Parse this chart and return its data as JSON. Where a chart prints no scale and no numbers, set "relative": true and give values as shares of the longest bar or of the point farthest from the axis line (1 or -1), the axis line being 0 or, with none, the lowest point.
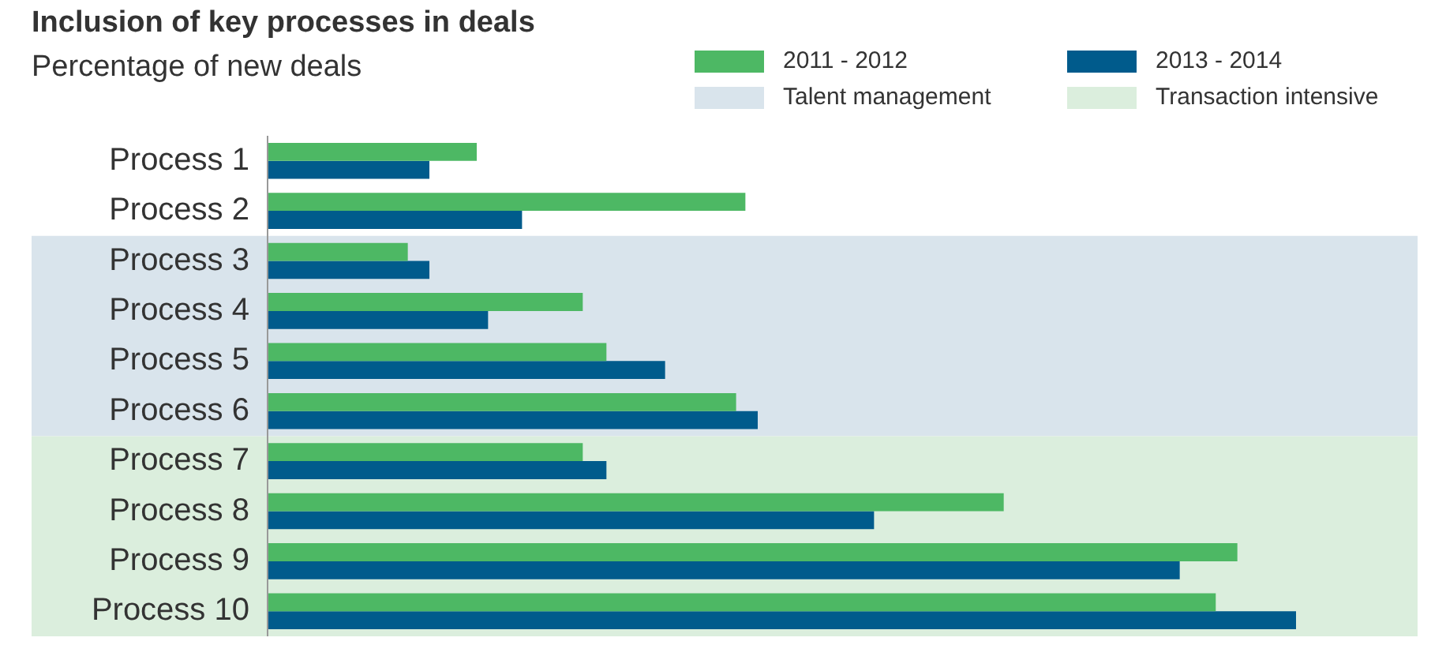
{
  "chart_data": {
    "type": "bar",
    "orientation": "horizontal",
    "relative": true,
    "title": "Inclusion of key processes in deals",
    "subtitle": "Percentage of new deals",
    "categories": [
      "Process 1",
      "Process 2",
      "Process 3",
      "Process 4",
      "Process 5",
      "Process 6",
      "Process 7",
      "Process 8",
      "Process 9",
      "Process 10"
    ],
    "series": [
      {
        "name": "2011 - 2012",
        "color": "#4db864",
        "values": [
          0.204,
          0.465,
          0.137,
          0.307,
          0.33,
          0.456,
          0.307,
          0.716,
          0.943,
          0.922
        ]
      },
      {
        "name": "2013 - 2014",
        "color": "#005b8c",
        "values": [
          0.158,
          0.248,
          0.158,
          0.215,
          0.387,
          0.477,
          0.33,
          0.59,
          0.887,
          1
        ]
      }
    ],
    "bands": [
      {
        "axis": "y",
        "from": "Process 3",
        "to": "Process 6",
        "label": "Talent management",
        "color": "#d9e4ec"
      },
      {
        "axis": "y",
        "from": "Process 7",
        "to": "Process 10",
        "label": "Transaction intensive",
        "color": "#dbeedd"
      }
    ],
    "legend": "top right"
  }
}
